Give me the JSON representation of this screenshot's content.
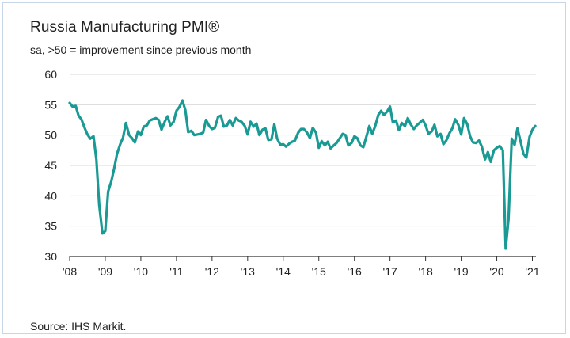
{
  "header": {
    "title": "Russia Manufacturing PMI®",
    "subtitle": "sa, >50 = improvement since previous month"
  },
  "footer": {
    "source": "Source: IHS Markit."
  },
  "colors": {
    "line": "#1a9a94",
    "grid": "#d9d9d9",
    "axis": "#333333",
    "text": "#222222"
  },
  "chart_data": {
    "type": "line",
    "title": "Russia Manufacturing PMI®",
    "subtitle": "sa, >50 = improvement since previous month",
    "xlabel": "",
    "ylabel": "",
    "ylim": [
      30,
      60
    ],
    "yticks": [
      30,
      35,
      40,
      45,
      50,
      55,
      60
    ],
    "xlim": [
      2008.0,
      2021.1
    ],
    "xticks": [
      {
        "value": 2008,
        "label": "'08"
      },
      {
        "value": 2009,
        "label": "'09"
      },
      {
        "value": 2010,
        "label": "'10"
      },
      {
        "value": 2011,
        "label": "'11"
      },
      {
        "value": 2012,
        "label": "'12"
      },
      {
        "value": 2013,
        "label": "'13"
      },
      {
        "value": 2014,
        "label": "'14"
      },
      {
        "value": 2015,
        "label": "'15"
      },
      {
        "value": 2016,
        "label": "'16"
      },
      {
        "value": 2017,
        "label": "'17"
      },
      {
        "value": 2018,
        "label": "'18"
      },
      {
        "value": 2019,
        "label": "'19"
      },
      {
        "value": 2020,
        "label": "'20"
      },
      {
        "value": 2021,
        "label": "'21"
      }
    ],
    "grid": true,
    "legend": "none",
    "series": [
      {
        "x": [
          2008.0,
          2008.08,
          2008.17,
          2008.25,
          2008.33,
          2008.42,
          2008.5,
          2008.58,
          2008.67,
          2008.75,
          2008.83,
          2008.92,
          2009.0,
          2009.08,
          2009.17,
          2009.25,
          2009.33,
          2009.42,
          2009.5,
          2009.58,
          2009.67,
          2009.75,
          2009.83,
          2009.92,
          2010.0,
          2010.08,
          2010.17,
          2010.25,
          2010.33,
          2010.42,
          2010.5,
          2010.58,
          2010.67,
          2010.75,
          2010.83,
          2010.92,
          2011.0,
          2011.08,
          2011.17,
          2011.25,
          2011.33,
          2011.42,
          2011.5,
          2011.58,
          2011.67,
          2011.75,
          2011.83,
          2011.92,
          2012.0,
          2012.08,
          2012.17,
          2012.25,
          2012.33,
          2012.42,
          2012.5,
          2012.58,
          2012.67,
          2012.75,
          2012.83,
          2012.92,
          2013.0,
          2013.08,
          2013.17,
          2013.25,
          2013.33,
          2013.42,
          2013.5,
          2013.58,
          2013.67,
          2013.75,
          2013.83,
          2013.92,
          2014.0,
          2014.08,
          2014.17,
          2014.25,
          2014.33,
          2014.42,
          2014.5,
          2014.58,
          2014.67,
          2014.75,
          2014.83,
          2014.92,
          2015.0,
          2015.08,
          2015.17,
          2015.25,
          2015.33,
          2015.42,
          2015.5,
          2015.58,
          2015.67,
          2015.75,
          2015.83,
          2015.92,
          2016.0,
          2016.08,
          2016.17,
          2016.25,
          2016.33,
          2016.42,
          2016.5,
          2016.58,
          2016.67,
          2016.75,
          2016.83,
          2016.92,
          2017.0,
          2017.08,
          2017.17,
          2017.25,
          2017.33,
          2017.42,
          2017.5,
          2017.58,
          2017.67,
          2017.75,
          2017.83,
          2017.92,
          2018.0,
          2018.08,
          2018.17,
          2018.25,
          2018.33,
          2018.42,
          2018.5,
          2018.58,
          2018.67,
          2018.75,
          2018.83,
          2018.92,
          2019.0,
          2019.08,
          2019.17,
          2019.25,
          2019.33,
          2019.42,
          2019.5,
          2019.58,
          2019.67,
          2019.75,
          2019.83,
          2019.92,
          2020.0,
          2020.08,
          2020.17,
          2020.25,
          2020.33,
          2020.42,
          2020.5,
          2020.58,
          2020.67,
          2020.75,
          2020.83,
          2020.92,
          2021.0,
          2021.08
        ],
        "values": [
          55.3,
          54.7,
          54.8,
          53.2,
          52.6,
          51.2,
          50.1,
          49.4,
          49.8,
          46.0,
          38.5,
          33.8,
          34.2,
          40.7,
          42.4,
          44.5,
          46.9,
          48.5,
          49.6,
          52.0,
          50.0,
          49.5,
          48.8,
          50.6,
          50.0,
          51.4,
          51.6,
          52.4,
          52.6,
          52.8,
          52.5,
          50.9,
          52.2,
          53.1,
          51.6,
          52.2,
          54.0,
          54.6,
          55.7,
          54.1,
          50.5,
          50.7,
          50.0,
          50.1,
          50.2,
          50.4,
          52.5,
          51.5,
          51.0,
          51.2,
          53.0,
          53.2,
          51.4,
          51.6,
          52.5,
          51.6,
          52.8,
          52.4,
          52.2,
          51.5,
          50.1,
          52.2,
          51.4,
          51.9,
          50.0,
          50.9,
          51.1,
          49.2,
          49.3,
          51.8,
          49.4,
          48.4,
          48.5,
          48.1,
          48.6,
          48.9,
          49.1,
          50.4,
          51.0,
          51.0,
          50.4,
          49.5,
          51.2,
          50.4,
          47.9,
          49.0,
          48.3,
          48.9,
          47.8,
          48.3,
          48.7,
          49.4,
          50.2,
          50.0,
          48.3,
          48.7,
          49.8,
          49.5,
          48.3,
          48.0,
          49.6,
          51.5,
          50.2,
          51.4,
          53.3,
          54.0,
          53.3,
          53.9,
          54.7,
          52.1,
          52.4,
          50.8,
          52.0,
          51.5,
          52.8,
          51.8,
          51.0,
          51.6,
          52.0,
          52.5,
          51.6,
          50.2,
          50.6,
          51.7,
          49.8,
          50.2,
          48.5,
          49.1,
          50.3,
          51.1,
          52.6,
          51.7,
          50.1,
          52.8,
          51.8,
          49.8,
          48.8,
          48.7,
          49.1,
          48.1,
          46.0,
          47.2,
          45.6,
          47.5,
          47.9,
          48.2,
          47.5,
          31.3,
          36.2,
          49.4,
          48.4,
          51.1,
          48.9,
          46.9,
          46.3,
          49.7,
          50.9,
          51.5
        ]
      }
    ]
  }
}
